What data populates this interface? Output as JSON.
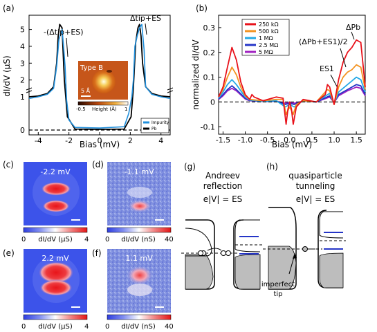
{
  "panel_a": {
    "label": "(a)",
    "xlabel": "Bias (mV)",
    "ylabel": "dI/dV (µS)",
    "xticks": [
      "-4",
      "-2",
      "0",
      "2",
      "4"
    ],
    "yticks": [
      "0",
      "1",
      "2",
      "3",
      "4",
      "5"
    ],
    "annot_left": "-(Δtip+ES)",
    "annot_right": "Δtip+ES",
    "inset_title": "Type B",
    "inset_scale": "5 Å",
    "inset_cbar_min": "-0.5",
    "inset_cbar_label": "Height (Å)",
    "inset_cbar_max": "1",
    "legend": [
      {
        "name": "Impurity",
        "color": "#1f8fdc"
      },
      {
        "name": "Pb",
        "color": "#000000"
      }
    ]
  },
  "panel_b": {
    "label": "(b)",
    "xlabel": "Bias (mV)",
    "ylabel": "normalized dI/dV",
    "xticks": [
      "-1.5",
      "-1.0",
      "-0.5",
      "0.0",
      "0.5",
      "1.0",
      "1.5"
    ],
    "yticks": [
      "-0.1",
      "0",
      "0.1",
      "0.2",
      "0.3"
    ],
    "annot_dpb": "ΔPb",
    "annot_mid": "(ΔPb+ES1)/2",
    "annot_es1": "ES1",
    "legend": [
      {
        "name": "250 kΩ",
        "color": "#e8111a"
      },
      {
        "name": "500 kΩ",
        "color": "#f39321"
      },
      {
        "name": "1 MΩ",
        "color": "#23a9e6"
      },
      {
        "name": "2.5 MΩ",
        "color": "#2535c7"
      },
      {
        "name": "5 MΩ",
        "color": "#a020c0"
      }
    ]
  },
  "maps": [
    {
      "label": "(c)",
      "value": "-2.2 mV",
      "cbar_min": "0",
      "cbar_label": "dI/dV (µS)",
      "cbar_max": "4"
    },
    {
      "label": "(d)",
      "value": "-1.1 mV",
      "cbar_min": "0",
      "cbar_label": "dI/dV (nS)",
      "cbar_max": "40"
    },
    {
      "label": "(e)",
      "value": "2.2 mV",
      "cbar_min": "0",
      "cbar_label": "dI/dV (µS)",
      "cbar_max": "4"
    },
    {
      "label": "(f)",
      "value": "1.1 mV",
      "cbar_min": "0",
      "cbar_label": "dI/dV (nS)",
      "cbar_max": "40"
    }
  ],
  "panel_g": {
    "label": "(g)",
    "title_line1": "Andreev",
    "title_line2": "reflection",
    "condition": "e|V| = ES"
  },
  "panel_h": {
    "label": "(h)",
    "title_line1": "quasiparticle",
    "title_line2": "tunneling",
    "condition": "e|V| = ES",
    "tip_note_line1": "imperfect",
    "tip_note_line2": "tip"
  },
  "chart_data": [
    {
      "type": "line",
      "panel": "(a)",
      "xlabel": "Bias (mV)",
      "ylabel": "dI/dV (µS)",
      "xlim": [
        -4.6,
        4.6
      ],
      "ylim": [
        -0.15,
        5.6
      ],
      "y_break": "axis broken between 1 and 2 (upper part compressed)",
      "series": [
        {
          "name": "Pb",
          "x": [
            -4.6,
            -4.0,
            -3.4,
            -3.0,
            -2.8,
            -2.7,
            -2.6,
            -2.45,
            -2.3,
            -2.1,
            -1.6,
            0.0,
            1.6,
            2.05,
            2.2,
            2.35,
            2.5,
            2.6,
            2.7,
            2.8,
            3.0,
            3.4,
            4.0,
            4.6
          ],
          "y": [
            1.0,
            1.05,
            1.2,
            1.6,
            3.0,
            4.6,
            5.3,
            5.1,
            2.0,
            0.4,
            0.03,
            0.02,
            0.03,
            0.4,
            1.5,
            4.2,
            5.1,
            5.3,
            4.6,
            3.0,
            1.6,
            1.2,
            1.05,
            1.0
          ]
        },
        {
          "name": "Impurity",
          "x": [
            -4.6,
            -4.0,
            -3.4,
            -3.0,
            -2.8,
            -2.65,
            -2.45,
            -2.35,
            -2.25,
            -2.15,
            -2.0,
            -1.6,
            0.0,
            1.6,
            1.9,
            2.1,
            2.2,
            2.3,
            2.45,
            2.6,
            2.75,
            2.9,
            3.0,
            3.4,
            4.0,
            4.6
          ],
          "y": [
            0.95,
            1.0,
            1.15,
            1.5,
            2.8,
            4.4,
            5.0,
            4.0,
            2.8,
            0.9,
            0.3,
            0.08,
            0.06,
            0.1,
            0.5,
            1.0,
            2.0,
            4.0,
            4.6,
            5.1,
            5.3,
            3.8,
            1.6,
            1.15,
            1.0,
            0.95
          ]
        }
      ]
    },
    {
      "type": "line",
      "panel": "(b)",
      "xlabel": "Bias (mV)",
      "ylabel": "normalized dI/dV",
      "xlim": [
        -1.6,
        1.7
      ],
      "ylim": [
        -0.13,
        0.35
      ],
      "series": [
        {
          "name": "250 kΩ",
          "x": [
            -1.6,
            -1.5,
            -1.4,
            -1.3,
            -1.2,
            -1.1,
            -1.0,
            -0.9,
            -0.85,
            -0.8,
            -0.6,
            -0.3,
            -0.15,
            -0.08,
            -0.04,
            0.0,
            0.04,
            0.08,
            0.15,
            0.3,
            0.6,
            0.8,
            0.85,
            0.9,
            1.0,
            1.1,
            1.2,
            1.3,
            1.4,
            1.5,
            1.6,
            1.7
          ],
          "y": [
            0.02,
            0.06,
            0.14,
            0.22,
            0.17,
            0.08,
            0.03,
            0.01,
            0.03,
            0.02,
            0.005,
            0.02,
            0.015,
            -0.09,
            -0.03,
            0.0,
            -0.03,
            -0.09,
            -0.02,
            0.01,
            0.0,
            0.03,
            0.07,
            0.06,
            -0.01,
            0.09,
            0.16,
            0.2,
            0.22,
            0.25,
            0.24,
            0.06
          ]
        },
        {
          "name": "500 kΩ",
          "x": [
            -1.6,
            -1.5,
            -1.4,
            -1.3,
            -1.2,
            -1.1,
            -1.0,
            -0.9,
            -0.6,
            -0.3,
            -0.15,
            -0.08,
            0.0,
            0.08,
            0.15,
            0.3,
            0.6,
            0.85,
            0.9,
            1.0,
            1.1,
            1.2,
            1.3,
            1.4,
            1.5,
            1.6,
            1.7
          ],
          "y": [
            0.02,
            0.05,
            0.1,
            0.14,
            0.11,
            0.06,
            0.025,
            0.01,
            0.005,
            0.01,
            0.01,
            -0.05,
            -0.02,
            -0.05,
            -0.01,
            0.005,
            0.0,
            0.05,
            0.045,
            -0.01,
            0.06,
            0.1,
            0.12,
            0.13,
            0.15,
            0.14,
            0.05
          ]
        },
        {
          "name": "1 MΩ",
          "x": [
            -1.6,
            -1.5,
            -1.4,
            -1.3,
            -1.2,
            -1.0,
            -0.9,
            -0.6,
            -0.3,
            -0.1,
            0.0,
            0.1,
            0.3,
            0.6,
            0.9,
            1.0,
            1.1,
            1.3,
            1.5,
            1.6,
            1.7
          ],
          "y": [
            0.015,
            0.04,
            0.07,
            0.09,
            0.07,
            0.02,
            0.008,
            0.003,
            0.005,
            -0.02,
            -0.01,
            -0.02,
            0.005,
            0.0,
            0.035,
            -0.005,
            0.04,
            0.07,
            0.1,
            0.09,
            0.04
          ]
        },
        {
          "name": "2.5 MΩ",
          "x": [
            -1.6,
            -1.5,
            -1.4,
            -1.3,
            -1.2,
            -1.0,
            -0.9,
            -0.6,
            -0.3,
            -0.1,
            0.0,
            0.1,
            0.3,
            0.6,
            0.9,
            1.0,
            1.1,
            1.3,
            1.5,
            1.6,
            1.7
          ],
          "y": [
            0.012,
            0.03,
            0.05,
            0.065,
            0.05,
            0.015,
            0.006,
            0.002,
            0.003,
            -0.01,
            -0.005,
            -0.01,
            0.003,
            0.0,
            0.025,
            -0.003,
            0.03,
            0.05,
            0.07,
            0.065,
            0.03
          ]
        },
        {
          "name": "5 MΩ",
          "x": [
            -1.6,
            -1.5,
            -1.4,
            -1.3,
            -1.2,
            -1.0,
            -0.9,
            -0.6,
            -0.3,
            -0.1,
            0.0,
            0.1,
            0.3,
            0.6,
            0.9,
            1.0,
            1.1,
            1.3,
            1.5,
            1.6,
            1.7
          ],
          "y": [
            0.01,
            0.025,
            0.045,
            0.055,
            0.045,
            0.012,
            0.005,
            0.002,
            0.003,
            -0.005,
            -0.003,
            -0.005,
            0.003,
            0.0,
            0.02,
            -0.002,
            0.025,
            0.045,
            0.06,
            0.055,
            0.025
          ]
        }
      ]
    }
  ]
}
